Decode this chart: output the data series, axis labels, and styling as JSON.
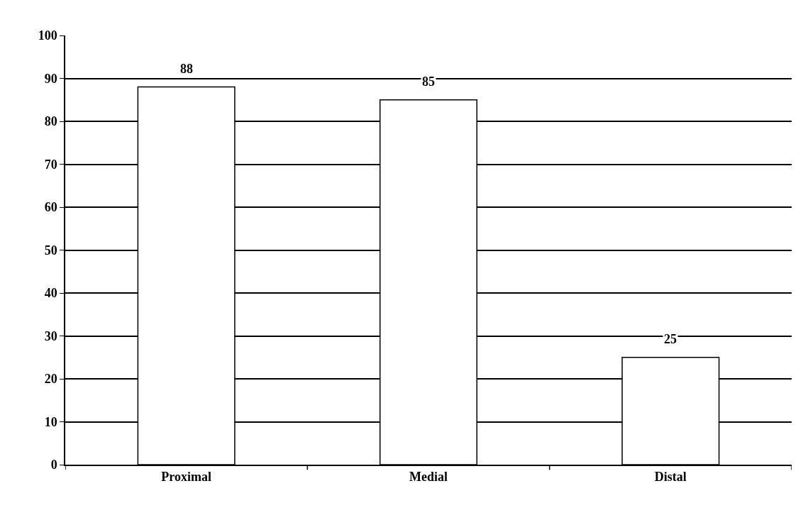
{
  "chart_data": {
    "type": "bar",
    "categories": [
      "Proximal",
      "Medial",
      "Distal"
    ],
    "values": [
      88,
      85,
      25
    ],
    "color": "#ffffff",
    "ylim": [
      0,
      100
    ],
    "yticks": [
      0,
      10,
      20,
      30,
      40,
      50,
      60,
      70,
      80,
      90,
      100
    ],
    "grid": "y",
    "data_labels": true,
    "legend": false
  }
}
